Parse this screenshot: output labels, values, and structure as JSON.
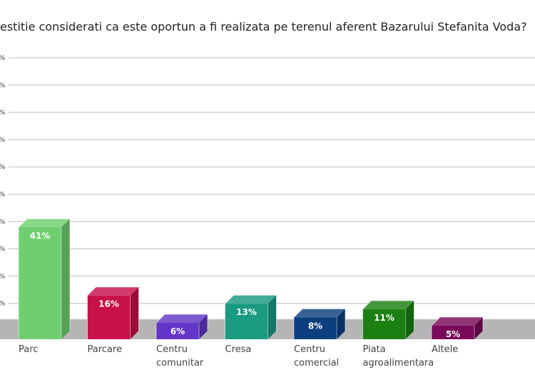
{
  "title": "estitie considerati ca este oportun a fi realizata pe terenul aferent Bazarului Stefanita Voda?",
  "colors": {
    "grid": "#d0d0d0",
    "floor": "#b5b5b5"
  },
  "chart_data": {
    "type": "bar",
    "categories": [
      [
        "Parc"
      ],
      [
        "Parcare"
      ],
      [
        "Centru",
        "comunitar"
      ],
      [
        "Cresa"
      ],
      [
        "Centru",
        "comercial"
      ],
      [
        "Piata",
        "agroalimentara"
      ],
      [
        "Altele"
      ]
    ],
    "values": [
      41,
      16,
      6,
      13,
      8,
      11,
      5
    ],
    "data_labels": [
      "41%",
      "16%",
      "6%",
      "13%",
      "8%",
      "11%",
      "5%"
    ],
    "bar_colors": [
      "#6fcf6f",
      "#c8104a",
      "#6236c8",
      "#1a9a80",
      "#0c3f7f",
      "#1b7f12",
      "#7a0a5a"
    ],
    "ylim": [
      0,
      100
    ],
    "yticks": [
      0,
      10,
      20,
      30,
      40,
      50,
      60,
      70,
      80,
      90,
      100
    ],
    "ytick_labels": [
      "%",
      "%",
      "%",
      "%",
      "%",
      "%",
      "%",
      "%",
      "%",
      "%",
      "%"
    ],
    "grid": true,
    "style": "3d"
  }
}
